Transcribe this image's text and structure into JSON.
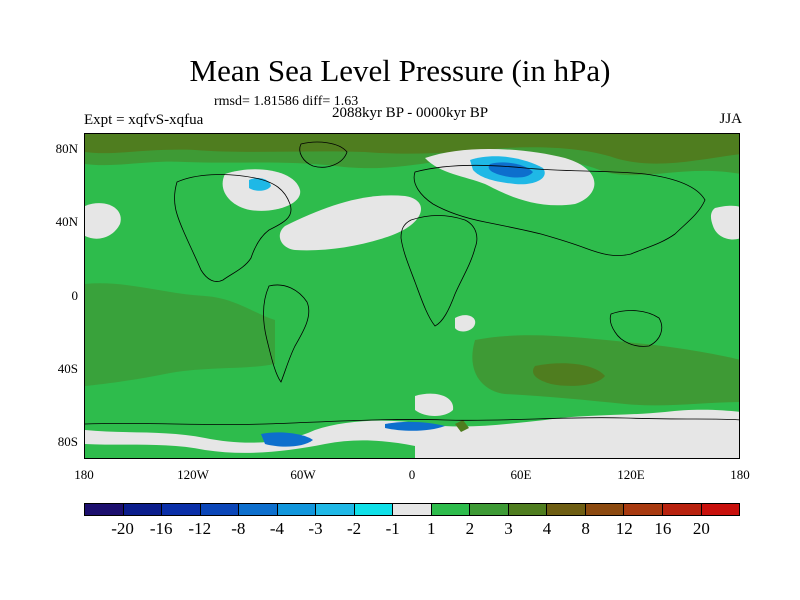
{
  "title": "Mean Sea Level Pressure (in hPa)",
  "stats": "rmsd= 1.81586 diff= 1.63",
  "experiment": "Expt = xqfvS-xqfua",
  "period": "2088kyr BP - 0000kyr BP",
  "season": "JJA",
  "latitude_labels": [
    "80N",
    "40N",
    "0",
    "40S",
    "80S"
  ],
  "longitude_labels": [
    "180",
    "120W",
    "60W",
    "0",
    "60E",
    "120E",
    "180"
  ],
  "colorbar": {
    "labels": [
      "-20",
      "-16",
      "-12",
      "-8",
      "-4",
      "-3",
      "-2",
      "-1",
      "1",
      "2",
      "3",
      "4",
      "8",
      "12",
      "16",
      "20"
    ],
    "colors": [
      "#1c0f6e",
      "#0b1d8c",
      "#0a2fa8",
      "#0b46b8",
      "#0d6fcd",
      "#1196dc",
      "#1fb8e6",
      "#10e0e8",
      "#e6e6e6",
      "#2ebc4c",
      "#3e9a35",
      "#4f7d1f",
      "#6e5e13",
      "#8c4a10",
      "#a83a10",
      "#b8220e",
      "#c8100c"
    ]
  },
  "chart_data": {
    "type": "filled-contour-map",
    "variable": "Mean Sea Level Pressure difference",
    "units": "hPa",
    "projection": "cylindrical equidistant",
    "lon_range": [
      -180,
      180
    ],
    "lat_range": [
      -90,
      90
    ],
    "contour_levels": [
      -20,
      -16,
      -12,
      -8,
      -4,
      -3,
      -2,
      -1,
      1,
      2,
      3,
      4,
      8,
      12,
      16,
      20
    ],
    "rmsd": 1.81586,
    "diff": 1.63,
    "dominant_value_range": "1 to 2",
    "features": [
      {
        "region": "Arctic / northern high latitudes",
        "value_range": "3 to 4"
      },
      {
        "region": "Barents Sea",
        "value_range": "-4 to -1"
      },
      {
        "region": "Hudson Bay / northern Canada",
        "value_range": "-3 to -1"
      },
      {
        "region": "North Atlantic",
        "value_range": "-1 to 1"
      },
      {
        "region": "Southern Ocean",
        "value_range": "2 to 4"
      },
      {
        "region": "Antarctic coast",
        "value_range": "-4 to 1"
      }
    ]
  }
}
